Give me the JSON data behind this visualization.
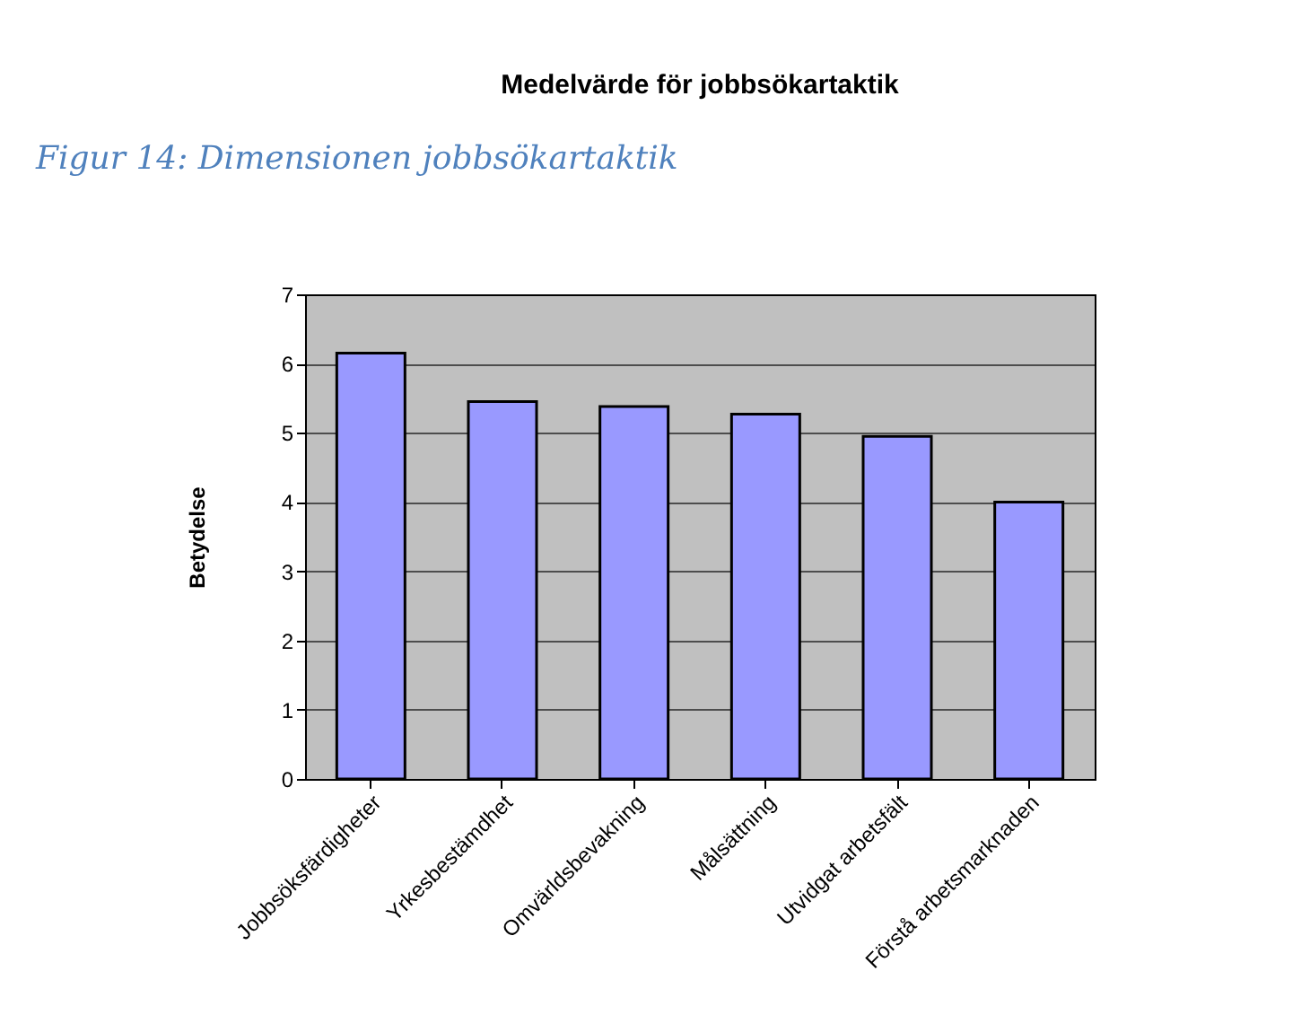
{
  "chart_data": {
    "type": "bar",
    "title": "Medelvärde för jobbsökartaktik",
    "ylabel": "Betydelse",
    "annotations": [
      "Figur 14: Dimensionen jobbsökartaktik"
    ],
    "categories": [
      "Jobbsöksfärdigheter",
      "Yrkesbestämdhet",
      "Omvärldsbevakning",
      "Målsättning",
      "Utvidgat arbetsfält",
      "Förstå arbetsmarknaden"
    ],
    "values": [
      6.15,
      5.45,
      5.38,
      5.27,
      4.95,
      4.0
    ],
    "color": "#9999ff",
    "ylim": [
      0,
      7
    ],
    "yticks": [
      0,
      1,
      2,
      3,
      4,
      5,
      6,
      7
    ],
    "grid": "y"
  }
}
